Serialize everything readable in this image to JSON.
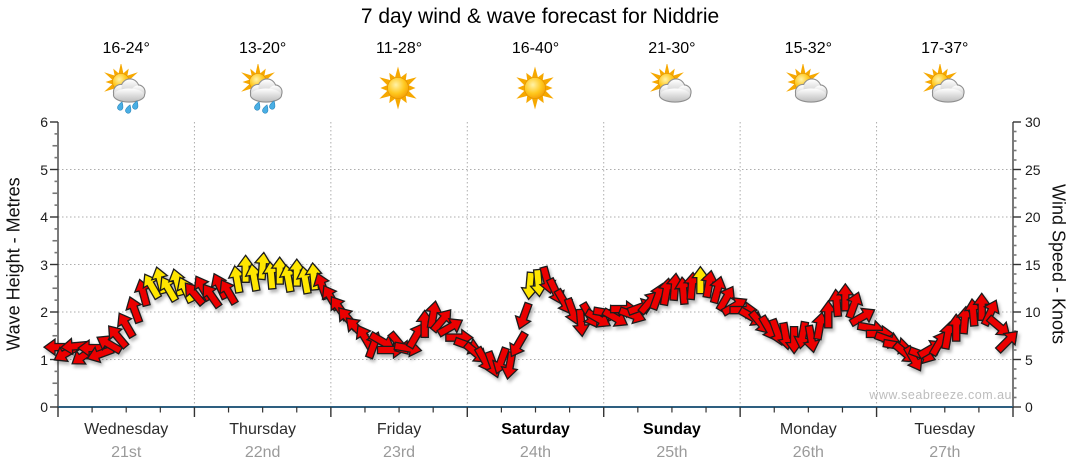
{
  "title": "7 day wind & wave forecast for Niddrie",
  "watermark": "www.seabreeze.com.au",
  "axes": {
    "left_title": "Wave Height - Metres",
    "right_title": "Wind Speed - Knots",
    "left_ticks": [
      0,
      1,
      2,
      3,
      4,
      5,
      6
    ],
    "right_ticks": [
      0,
      5,
      10,
      15,
      20,
      25,
      30
    ],
    "left_range_metres": [
      0,
      6
    ],
    "right_range_knots": [
      0,
      30
    ],
    "grid": "dotted horizontal lines at each metre, dotted vertical lines at day boundaries"
  },
  "days": [
    {
      "name": "Wednesday",
      "date": "21st",
      "temp": "16-24°",
      "icon": "sun-cloud-rain",
      "bold": false
    },
    {
      "name": "Thursday",
      "date": "22nd",
      "temp": "13-20°",
      "icon": "sun-cloud-rain",
      "bold": false
    },
    {
      "name": "Friday",
      "date": "23rd",
      "temp": "11-28°",
      "icon": "sunny",
      "bold": false
    },
    {
      "name": "Saturday",
      "date": "24th",
      "temp": "16-40°",
      "icon": "sunny",
      "bold": true
    },
    {
      "name": "Sunday",
      "date": "25th",
      "temp": "21-30°",
      "icon": "sun-cloud",
      "bold": true
    },
    {
      "name": "Monday",
      "date": "26th",
      "temp": "15-32°",
      "icon": "sun-cloud",
      "bold": false
    },
    {
      "name": "Tuesday",
      "date": "27th",
      "temp": "17-37°",
      "icon": "sun-cloud",
      "bold": false
    }
  ],
  "colors": {
    "arrow_red": "#EB0000",
    "arrow_yellow": "#FFE600",
    "arrow_outline": "#1a1a1a",
    "axis_line": "#333333",
    "bottom_axis_line": "#2E5F80",
    "grid_line": "#ADADAD",
    "date_gray": "#9a9a9a",
    "watermark_gray": "#bdbdbd"
  },
  "chart_data": {
    "type": "wind-arrow-series",
    "title": "7 day wind & wave forecast for Niddrie",
    "x_axis": "time, Wednesday 21st 00:00 through Tuesday 27th 24:00 (hours 0-168, major ticks each day, minor ticks every 6 h)",
    "y_axis_left": "Wave Height - Metres, 0-6",
    "y_axis_right": "Wind Speed - Knots, 0-30 (arrows plotted on this scale; metres = knots / 5)",
    "legend": "arrow glyphs show wind direction; yellow arrows mark favourable/rated wind periods, red otherwise",
    "point_format": [
      "hours_from_Wed_00:00",
      "wind_speed_knots",
      "arrow_direction_degrees_0_is_up_clockwise",
      "color r=red y=yellow"
    ],
    "points": [
      [
        0,
        6.3,
        270,
        "r"
      ],
      [
        1.5,
        5.7,
        240,
        "r"
      ],
      [
        3,
        6.4,
        265,
        "r"
      ],
      [
        4.5,
        5.4,
        235,
        "r"
      ],
      [
        6,
        6.2,
        270,
        "r"
      ],
      [
        7.5,
        5.6,
        250,
        "r"
      ],
      [
        9,
        6.6,
        300,
        "r"
      ],
      [
        10.5,
        7.4,
        320,
        "r"
      ],
      [
        12,
        8.6,
        330,
        "r"
      ],
      [
        13.5,
        10.2,
        340,
        "r"
      ],
      [
        15,
        12.0,
        345,
        "r"
      ],
      [
        16.5,
        12.7,
        330,
        "y"
      ],
      [
        18,
        13.3,
        345,
        "y"
      ],
      [
        19.5,
        12.4,
        330,
        "y"
      ],
      [
        21,
        13.1,
        345,
        "y"
      ],
      [
        22.5,
        12.3,
        335,
        "y"
      ],
      [
        24,
        11.9,
        320,
        "r"
      ],
      [
        25.5,
        12.5,
        330,
        "r"
      ],
      [
        27,
        11.7,
        325,
        "r"
      ],
      [
        28.5,
        12.7,
        335,
        "r"
      ],
      [
        30,
        12.1,
        330,
        "r"
      ],
      [
        31.5,
        13.4,
        350,
        "y"
      ],
      [
        33,
        14.5,
        0,
        "y"
      ],
      [
        34.5,
        13.6,
        350,
        "y"
      ],
      [
        36,
        14.8,
        5,
        "y"
      ],
      [
        37.5,
        13.8,
        355,
        "y"
      ],
      [
        39,
        14.3,
        0,
        "y"
      ],
      [
        40.5,
        13.5,
        350,
        "y"
      ],
      [
        42,
        14.1,
        0,
        "y"
      ],
      [
        43.5,
        13.3,
        350,
        "y"
      ],
      [
        45,
        13.7,
        355,
        "y"
      ],
      [
        46.5,
        12.7,
        340,
        "r"
      ],
      [
        48,
        11.5,
        330,
        "r"
      ],
      [
        49.5,
        10.4,
        325,
        "r"
      ],
      [
        51,
        9.3,
        320,
        "r"
      ],
      [
        52.5,
        8.3,
        315,
        "r"
      ],
      [
        54,
        7.3,
        330,
        "r"
      ],
      [
        55.5,
        6.5,
        20,
        "r"
      ],
      [
        57,
        6.9,
        120,
        "r"
      ],
      [
        58.5,
        6.0,
        90,
        "r"
      ],
      [
        60,
        6.7,
        140,
        "r"
      ],
      [
        61.5,
        6.2,
        100,
        "r"
      ],
      [
        63,
        7.5,
        30,
        "r"
      ],
      [
        64.5,
        8.7,
        0,
        "r"
      ],
      [
        66,
        9.7,
        10,
        "r"
      ],
      [
        67.5,
        9.1,
        40,
        "r"
      ],
      [
        69,
        8.4,
        60,
        "r"
      ],
      [
        70.5,
        7.3,
        90,
        "r"
      ],
      [
        72,
        6.5,
        110,
        "r"
      ],
      [
        73.5,
        5.7,
        130,
        "r"
      ],
      [
        75,
        5.0,
        150,
        "r"
      ],
      [
        76.5,
        4.5,
        160,
        "r"
      ],
      [
        78,
        4.9,
        200,
        "r"
      ],
      [
        79.5,
        4.4,
        190,
        "r"
      ],
      [
        81,
        6.6,
        210,
        "r"
      ],
      [
        82,
        9.6,
        200,
        "r"
      ],
      [
        83,
        12.8,
        185,
        "y"
      ],
      [
        84.5,
        13.1,
        175,
        "y"
      ],
      [
        86,
        13.4,
        165,
        "r"
      ],
      [
        87.5,
        12.2,
        155,
        "r"
      ],
      [
        89,
        11.1,
        150,
        "r"
      ],
      [
        90.5,
        10.1,
        160,
        "r"
      ],
      [
        92,
        8.9,
        175,
        "r"
      ],
      [
        93.5,
        9.7,
        150,
        "r"
      ],
      [
        95,
        9.3,
        120,
        "r"
      ],
      [
        96.5,
        9.9,
        100,
        "r"
      ],
      [
        98,
        9.4,
        120,
        "r"
      ],
      [
        99.5,
        10.3,
        90,
        "r"
      ],
      [
        101,
        9.7,
        110,
        "r"
      ],
      [
        102.5,
        10.5,
        70,
        "r"
      ],
      [
        104,
        11.0,
        40,
        "r"
      ],
      [
        105.5,
        11.6,
        20,
        "r"
      ],
      [
        107,
        12.1,
        10,
        "r"
      ],
      [
        108.5,
        12.6,
        5,
        "r"
      ],
      [
        110,
        12.2,
        355,
        "r"
      ],
      [
        111.5,
        12.7,
        5,
        "r"
      ],
      [
        113,
        13.3,
        0,
        "y"
      ],
      [
        114.5,
        12.9,
        10,
        "r"
      ],
      [
        116,
        12.3,
        15,
        "r"
      ],
      [
        117.5,
        11.4,
        30,
        "r"
      ],
      [
        119,
        10.6,
        60,
        "r"
      ],
      [
        120.5,
        10.2,
        90,
        "r"
      ],
      [
        122,
        9.5,
        120,
        "r"
      ],
      [
        123.5,
        8.9,
        140,
        "r"
      ],
      [
        125,
        8.3,
        150,
        "r"
      ],
      [
        126.5,
        7.9,
        160,
        "r"
      ],
      [
        128,
        7.5,
        170,
        "r"
      ],
      [
        129.5,
        7.1,
        180,
        "r"
      ],
      [
        131,
        7.6,
        190,
        "r"
      ],
      [
        132.5,
        7.2,
        170,
        "r"
      ],
      [
        134,
        8.5,
        10,
        "r"
      ],
      [
        135.5,
        9.7,
        0,
        "r"
      ],
      [
        137,
        10.9,
        355,
        "r"
      ],
      [
        138.5,
        11.5,
        0,
        "r"
      ],
      [
        140,
        10.7,
        20,
        "r"
      ],
      [
        141.5,
        9.5,
        60,
        "r"
      ],
      [
        143,
        8.3,
        100,
        "r"
      ],
      [
        144.5,
        7.7,
        90,
        "r"
      ],
      [
        146,
        7.1,
        110,
        "r"
      ],
      [
        147.5,
        6.5,
        100,
        "r"
      ],
      [
        149,
        5.7,
        130,
        "r"
      ],
      [
        150.5,
        5.1,
        150,
        "r"
      ],
      [
        152,
        5.5,
        110,
        "r"
      ],
      [
        153.5,
        6.1,
        60,
        "r"
      ],
      [
        155,
        6.7,
        30,
        "r"
      ],
      [
        156.5,
        7.5,
        10,
        "r"
      ],
      [
        158,
        8.3,
        0,
        "r"
      ],
      [
        159.5,
        9.1,
        5,
        "r"
      ],
      [
        161,
        9.9,
        355,
        "r"
      ],
      [
        162.5,
        10.5,
        0,
        "r"
      ],
      [
        164,
        9.9,
        25,
        "r"
      ],
      [
        165.5,
        8.5,
        130,
        "r"
      ],
      [
        167,
        6.9,
        45,
        "r"
      ]
    ]
  }
}
